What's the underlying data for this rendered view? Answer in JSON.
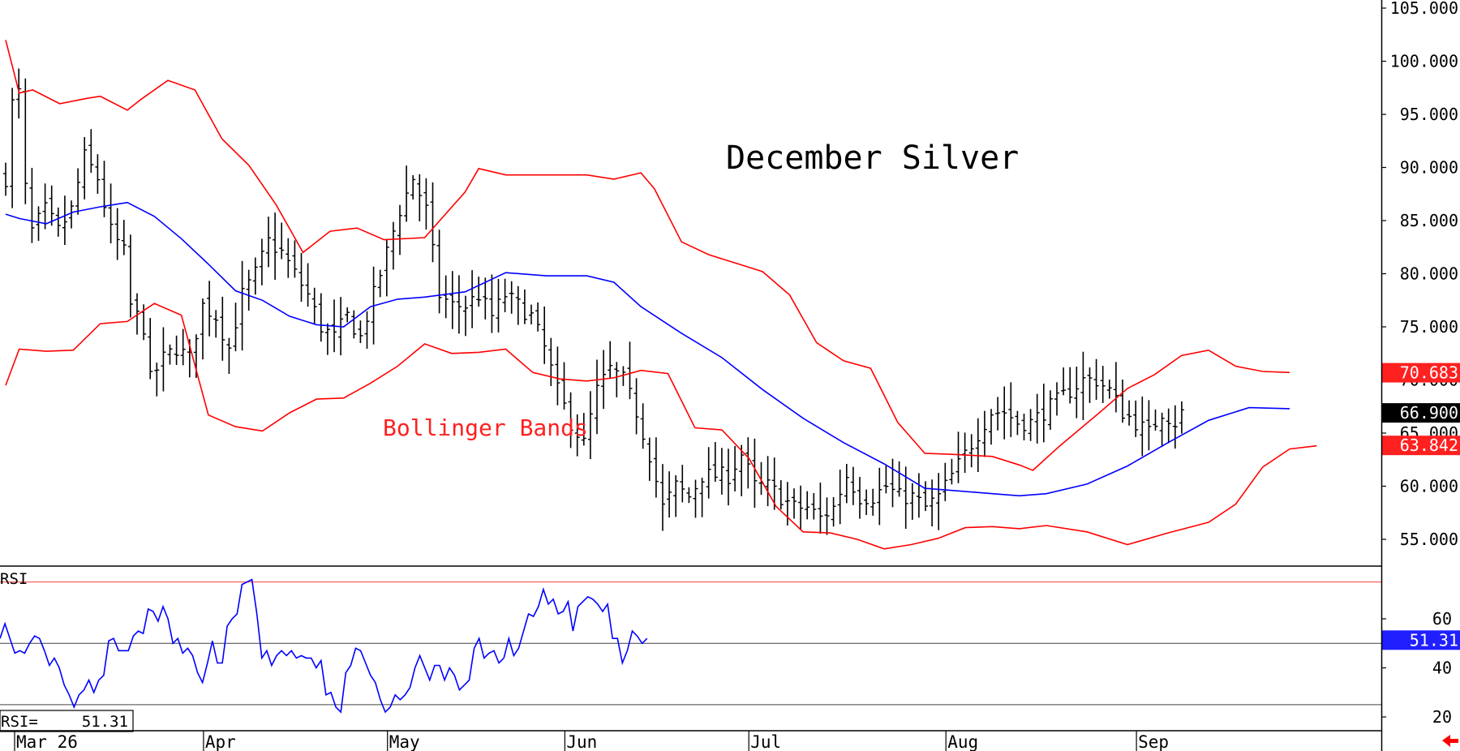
{
  "chart_data": [
    {
      "type": "ohlc",
      "title": "December Silver",
      "annotation": "Bollinger Bands",
      "y_axis": {
        "min": 52.5,
        "max": 105.0,
        "ticks": [
          "105.000",
          "100.000",
          "95.000",
          "90.000",
          "85.000",
          "80.000",
          "75.000",
          "70.000",
          "65.000",
          "60.000",
          "55.000"
        ],
        "side": "right"
      },
      "x_axis": {
        "labels": [
          "Mar 26",
          "Apr",
          "May",
          "Jun",
          "Jul",
          "Aug",
          "Sep"
        ],
        "label_bars": [
          0,
          29,
          57,
          84,
          112,
          142,
          171
        ],
        "bar_count": 180
      },
      "price_tags": [
        {
          "label": "70.683",
          "value": 70.68,
          "color": "#ff2020"
        },
        {
          "label": "66.900",
          "value": 66.9,
          "color": "#000000"
        },
        {
          "label": "63.842",
          "value": 63.84,
          "color": "#ff2020"
        }
      ],
      "series_colors": {
        "bars": "#000000",
        "upper_band": "#ff0000",
        "middle_band": "#0000ff",
        "lower_band": "#ff0000"
      },
      "close_anchors": [
        [
          0,
          89
        ],
        [
          1,
          96
        ],
        [
          2,
          97
        ],
        [
          3,
          88
        ],
        [
          4,
          84
        ],
        [
          6,
          86
        ],
        [
          8,
          84
        ],
        [
          10,
          86
        ],
        [
          12,
          91
        ],
        [
          14,
          89
        ],
        [
          16,
          84
        ],
        [
          18,
          82
        ],
        [
          19,
          77
        ],
        [
          21,
          75
        ],
        [
          22,
          70
        ],
        [
          24,
          72
        ],
        [
          26,
          73
        ],
        [
          28,
          72
        ],
        [
          30,
          77
        ],
        [
          32,
          76
        ],
        [
          34,
          73
        ],
        [
          36,
          78
        ],
        [
          38,
          80
        ],
        [
          40,
          83
        ],
        [
          42,
          82
        ],
        [
          44,
          80
        ],
        [
          46,
          78
        ],
        [
          48,
          75
        ],
        [
          50,
          74
        ],
        [
          52,
          76
        ],
        [
          54,
          74
        ],
        [
          56,
          78
        ],
        [
          58,
          82
        ],
        [
          60,
          86
        ],
        [
          62,
          89
        ],
        [
          64,
          86
        ],
        [
          66,
          78
        ],
        [
          68,
          77
        ],
        [
          70,
          77
        ],
        [
          72,
          78
        ],
        [
          74,
          76
        ],
        [
          76,
          78
        ],
        [
          78,
          77
        ],
        [
          80,
          76
        ],
        [
          82,
          73
        ],
        [
          84,
          69
        ],
        [
          86,
          66
        ],
        [
          88,
          64
        ],
        [
          90,
          69
        ],
        [
          92,
          71
        ],
        [
          94,
          70
        ],
        [
          96,
          67
        ],
        [
          98,
          63
        ],
        [
          100,
          58
        ],
        [
          102,
          60
        ],
        [
          104,
          59
        ],
        [
          106,
          61
        ],
        [
          108,
          61
        ],
        [
          110,
          61
        ],
        [
          112,
          63
        ],
        [
          114,
          60
        ],
        [
          116,
          60
        ],
        [
          118,
          59
        ],
        [
          120,
          58
        ],
        [
          122,
          58
        ],
        [
          124,
          57
        ],
        [
          126,
          58
        ],
        [
          128,
          61
        ],
        [
          130,
          59
        ],
        [
          132,
          59
        ],
        [
          134,
          60
        ],
        [
          136,
          59
        ],
        [
          138,
          59
        ],
        [
          140,
          58
        ],
        [
          142,
          59
        ],
        [
          144,
          61
        ],
        [
          146,
          63
        ],
        [
          148,
          65
        ],
        [
          150,
          67
        ],
        [
          152,
          67
        ],
        [
          154,
          66
        ],
        [
          156,
          66
        ],
        [
          158,
          67
        ],
        [
          160,
          68
        ],
        [
          162,
          69
        ],
        [
          164,
          70
        ],
        [
          166,
          70
        ],
        [
          168,
          69
        ],
        [
          170,
          67
        ],
        [
          172,
          66
        ],
        [
          174,
          65
        ],
        [
          176,
          67
        ],
        [
          178,
          66
        ],
        [
          179,
          66.9
        ]
      ],
      "upper_band": [
        [
          0,
          102
        ],
        [
          2,
          97
        ],
        [
          4,
          97.3
        ],
        [
          8,
          96
        ],
        [
          12,
          96.5
        ],
        [
          14,
          96.7
        ],
        [
          18,
          95.4
        ],
        [
          20,
          96.4
        ],
        [
          24,
          98.2
        ],
        [
          28,
          97.3
        ],
        [
          32,
          92.7
        ],
        [
          36,
          90.2
        ],
        [
          40,
          86.5
        ],
        [
          44,
          82
        ],
        [
          48,
          84
        ],
        [
          52,
          84.3
        ],
        [
          56,
          83.2
        ],
        [
          62,
          83.4
        ],
        [
          68,
          87.7
        ],
        [
          70,
          89.9
        ],
        [
          74,
          89.3
        ],
        [
          80,
          89.3
        ],
        [
          86,
          89.3
        ],
        [
          90,
          88.9
        ],
        [
          94,
          89.5
        ],
        [
          96,
          88
        ],
        [
          100,
          83
        ],
        [
          104,
          81.8
        ],
        [
          108,
          81
        ],
        [
          112,
          80.2
        ],
        [
          116,
          78
        ],
        [
          120,
          73.5
        ],
        [
          124,
          71.8
        ],
        [
          128,
          71.1
        ],
        [
          132,
          66
        ],
        [
          136,
          63.1
        ],
        [
          140,
          63
        ],
        [
          146,
          62.8
        ],
        [
          150,
          62
        ],
        [
          152,
          61.5
        ],
        [
          156,
          63.8
        ],
        [
          162,
          67
        ],
        [
          166,
          69.2
        ],
        [
          170,
          70.5
        ],
        [
          174,
          72.3
        ],
        [
          178,
          72.8
        ],
        [
          182,
          71.3
        ],
        [
          186,
          70.8
        ],
        [
          190,
          70.7
        ]
      ],
      "middle_band": [
        [
          0,
          85.6
        ],
        [
          2,
          85.2
        ],
        [
          6,
          84.7
        ],
        [
          10,
          85.8
        ],
        [
          14,
          86.3
        ],
        [
          18,
          86.7
        ],
        [
          22,
          85.4
        ],
        [
          26,
          83.3
        ],
        [
          30,
          80.9
        ],
        [
          34,
          78.4
        ],
        [
          38,
          77.5
        ],
        [
          42,
          76
        ],
        [
          46,
          75.2
        ],
        [
          50,
          75
        ],
        [
          54,
          76.9
        ],
        [
          58,
          77.6
        ],
        [
          62,
          77.8
        ],
        [
          68,
          78.3
        ],
        [
          74,
          80.1
        ],
        [
          80,
          79.8
        ],
        [
          86,
          79.8
        ],
        [
          90,
          79.2
        ],
        [
          94,
          76.9
        ],
        [
          100,
          74.4
        ],
        [
          106,
          72.1
        ],
        [
          112,
          69.1
        ],
        [
          118,
          66.4
        ],
        [
          124,
          64.1
        ],
        [
          130,
          62.1
        ],
        [
          136,
          59.8
        ],
        [
          140,
          59.6
        ],
        [
          146,
          59.3
        ],
        [
          150,
          59.1
        ],
        [
          154,
          59.3
        ],
        [
          160,
          60.2
        ],
        [
          166,
          61.9
        ],
        [
          172,
          64.1
        ],
        [
          178,
          66.2
        ],
        [
          184,
          67.4
        ],
        [
          190,
          67.3
        ]
      ],
      "lower_band": [
        [
          0,
          69.5
        ],
        [
          2,
          72.9
        ],
        [
          6,
          72.7
        ],
        [
          10,
          72.8
        ],
        [
          14,
          75.3
        ],
        [
          18,
          75.5
        ],
        [
          22,
          77.2
        ],
        [
          26,
          76.1
        ],
        [
          30,
          66.7
        ],
        [
          34,
          65.6
        ],
        [
          38,
          65.2
        ],
        [
          42,
          66.9
        ],
        [
          46,
          68.2
        ],
        [
          50,
          68.3
        ],
        [
          54,
          69.7
        ],
        [
          58,
          71.3
        ],
        [
          62,
          73.4
        ],
        [
          66,
          72.5
        ],
        [
          70,
          72.6
        ],
        [
          74,
          72.9
        ],
        [
          78,
          70.7
        ],
        [
          82,
          70.1
        ],
        [
          86,
          69.9
        ],
        [
          90,
          70.2
        ],
        [
          94,
          70.9
        ],
        [
          98,
          70.6
        ],
        [
          102,
          65.5
        ],
        [
          106,
          65.3
        ],
        [
          110,
          62.6
        ],
        [
          114,
          58.1
        ],
        [
          118,
          55.7
        ],
        [
          122,
          55.6
        ],
        [
          126,
          55
        ],
        [
          130,
          54.1
        ],
        [
          134,
          54.5
        ],
        [
          138,
          55.1
        ],
        [
          142,
          56.1
        ],
        [
          146,
          56.2
        ],
        [
          150,
          56
        ],
        [
          154,
          56.3
        ],
        [
          160,
          55.7
        ],
        [
          166,
          54.5
        ],
        [
          172,
          55.6
        ],
        [
          178,
          56.6
        ],
        [
          182,
          58.3
        ],
        [
          186,
          61.8
        ],
        [
          190,
          63.5
        ],
        [
          194,
          63.8
        ]
      ]
    },
    {
      "type": "line",
      "label": "RSI",
      "readout_label": "RSI=",
      "readout_value": "51.31",
      "y_axis": {
        "min": 15,
        "max": 80,
        "ticks": [
          "60",
          "40",
          "20"
        ]
      },
      "reference_lines": [
        {
          "value": 75,
          "color": "#ff4040"
        },
        {
          "value": 25,
          "color": "#444444"
        },
        {
          "value": 50,
          "color": "#444444"
        }
      ],
      "current_tag": {
        "label": "51.31",
        "value": 51.31,
        "color": "#2020ff"
      },
      "line_color": "#0000ff",
      "values": [
        [
          0,
          52
        ],
        [
          2,
          58
        ],
        [
          4,
          52
        ],
        [
          6,
          46
        ],
        [
          8,
          47
        ],
        [
          10,
          46
        ],
        [
          12,
          50
        ],
        [
          14,
          53
        ],
        [
          16,
          52
        ],
        [
          18,
          47
        ],
        [
          20,
          41
        ],
        [
          22,
          44
        ],
        [
          24,
          40
        ],
        [
          26,
          33
        ],
        [
          28,
          29
        ],
        [
          30,
          24
        ],
        [
          32,
          29
        ],
        [
          34,
          31
        ],
        [
          36,
          35
        ],
        [
          38,
          30
        ],
        [
          40,
          35
        ],
        [
          42,
          37
        ],
        [
          44,
          51
        ],
        [
          46,
          52
        ],
        [
          48,
          47
        ],
        [
          50,
          47
        ],
        [
          52,
          47
        ],
        [
          54,
          53
        ],
        [
          56,
          55
        ],
        [
          58,
          54
        ],
        [
          60,
          64
        ],
        [
          62,
          63
        ],
        [
          64,
          59
        ],
        [
          66,
          65
        ],
        [
          68,
          60
        ],
        [
          70,
          50
        ],
        [
          72,
          52
        ],
        [
          74,
          46
        ],
        [
          76,
          48
        ],
        [
          78,
          45
        ],
        [
          80,
          38
        ],
        [
          82,
          34
        ],
        [
          84,
          42
        ],
        [
          86,
          51
        ],
        [
          88,
          42
        ],
        [
          90,
          42
        ],
        [
          92,
          57
        ],
        [
          94,
          60
        ],
        [
          96,
          62
        ],
        [
          98,
          74
        ],
        [
          100,
          75
        ],
        [
          102,
          76
        ],
        [
          104,
          62
        ],
        [
          106,
          44
        ],
        [
          108,
          47
        ],
        [
          110,
          41
        ],
        [
          112,
          45
        ],
        [
          114,
          47
        ],
        [
          116,
          45
        ],
        [
          118,
          47
        ],
        [
          120,
          44
        ],
        [
          122,
          45
        ],
        [
          124,
          44
        ],
        [
          126,
          44
        ],
        [
          128,
          40
        ],
        [
          130,
          43
        ],
        [
          132,
          29
        ],
        [
          134,
          30
        ],
        [
          136,
          24
        ],
        [
          138,
          22
        ],
        [
          140,
          38
        ],
        [
          142,
          41
        ],
        [
          144,
          48
        ],
        [
          146,
          47
        ],
        [
          148,
          42
        ],
        [
          150,
          37
        ],
        [
          152,
          34
        ],
        [
          154,
          27
        ],
        [
          156,
          22
        ],
        [
          158,
          24
        ],
        [
          160,
          29
        ],
        [
          162,
          27
        ],
        [
          164,
          29
        ],
        [
          166,
          32
        ],
        [
          168,
          40
        ],
        [
          170,
          45
        ],
        [
          172,
          40
        ],
        [
          174,
          35
        ],
        [
          176,
          41
        ],
        [
          178,
          41
        ],
        [
          180,
          35
        ],
        [
          182,
          40
        ],
        [
          184,
          37
        ],
        [
          186,
          31
        ],
        [
          188,
          33
        ],
        [
          190,
          35
        ],
        [
          192,
          48
        ],
        [
          194,
          52
        ],
        [
          196,
          44
        ],
        [
          198,
          46
        ],
        [
          200,
          47
        ],
        [
          202,
          42
        ],
        [
          204,
          44
        ],
        [
          206,
          52
        ],
        [
          208,
          45
        ],
        [
          210,
          48
        ],
        [
          212,
          55
        ],
        [
          214,
          62
        ],
        [
          216,
          61
        ],
        [
          218,
          65
        ],
        [
          220,
          72
        ],
        [
          222,
          66
        ],
        [
          224,
          68
        ],
        [
          226,
          62
        ],
        [
          228,
          63
        ],
        [
          230,
          67
        ],
        [
          232,
          55
        ],
        [
          234,
          65
        ],
        [
          236,
          67
        ],
        [
          238,
          69
        ],
        [
          240,
          68
        ],
        [
          242,
          66
        ],
        [
          244,
          63
        ],
        [
          246,
          66
        ],
        [
          248,
          52
        ],
        [
          250,
          52
        ],
        [
          252,
          42
        ],
        [
          254,
          47
        ],
        [
          256,
          55
        ],
        [
          258,
          53
        ],
        [
          260,
          50
        ],
        [
          262,
          52
        ]
      ]
    }
  ],
  "nav_arrow_color": "#ff0000"
}
